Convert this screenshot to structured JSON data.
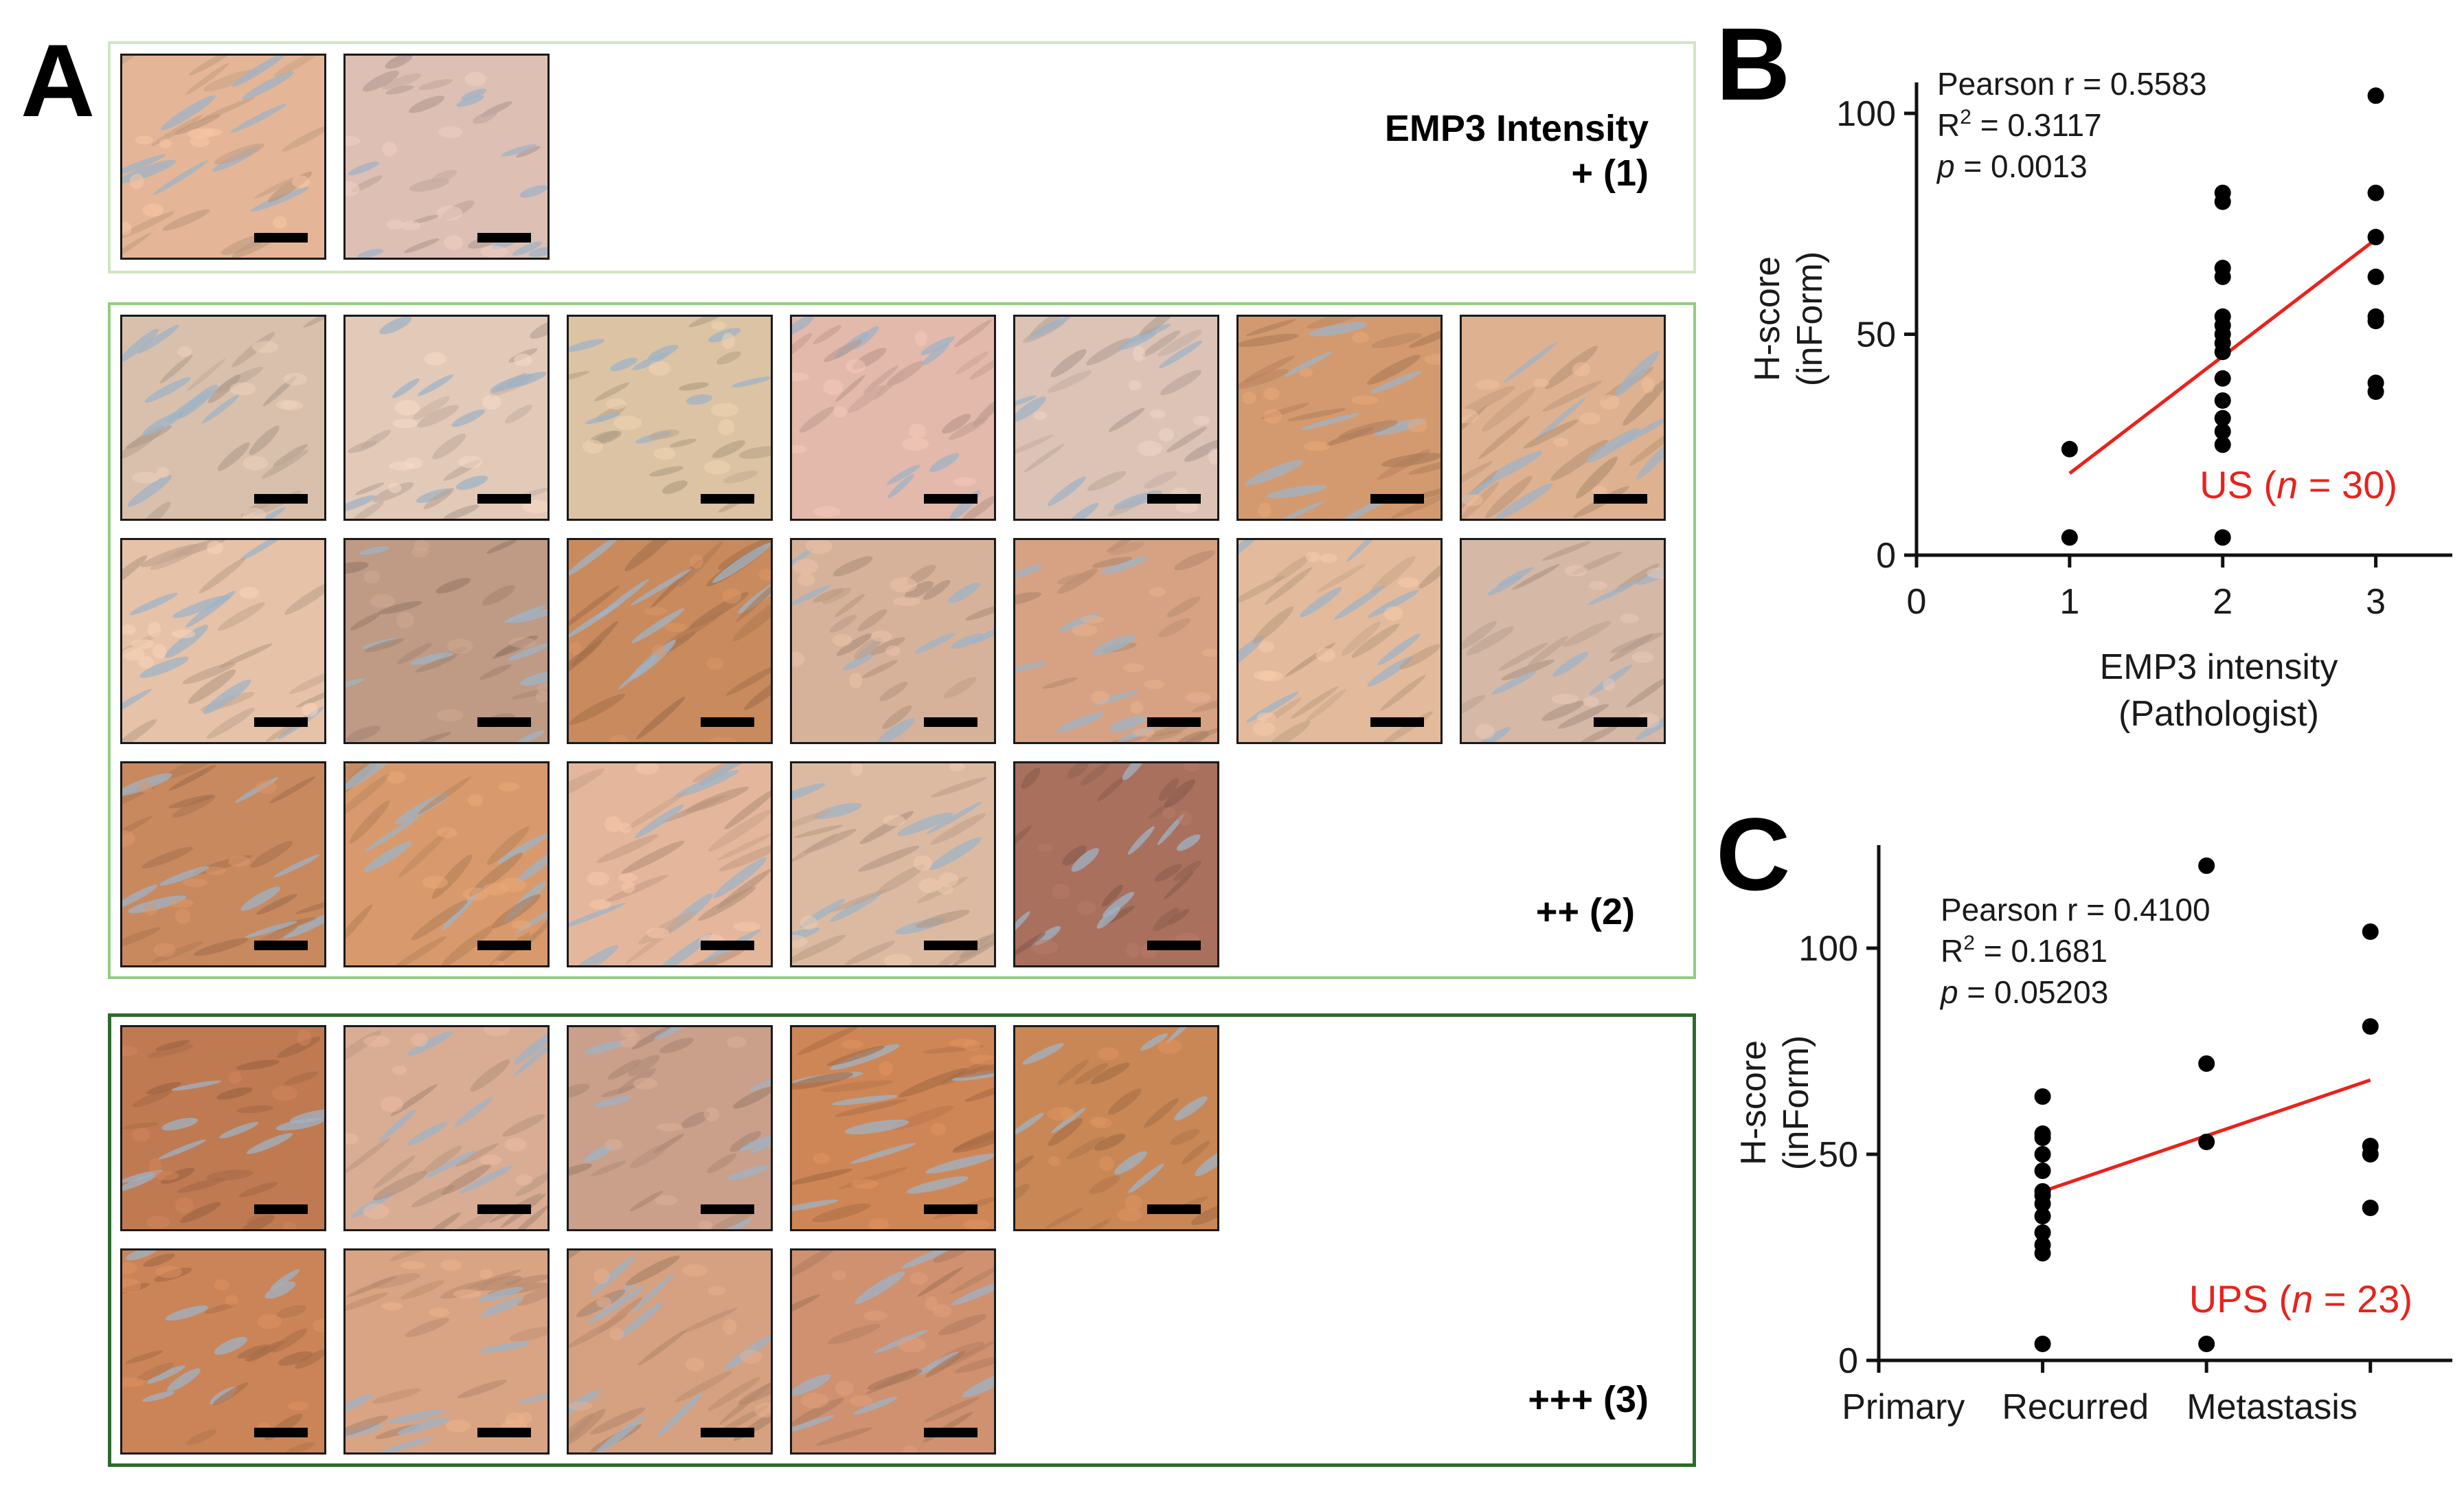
{
  "panel_a": {
    "letter": "A",
    "groups": [
      {
        "id": "intensity-1",
        "label_lines": [
          "EMP3 Intensity",
          "+ (1)"
        ],
        "border_color": "#cfe6c2",
        "tiles": [
          {
            "color": "#e4b697",
            "fiber": 0.7
          },
          {
            "color": "#ddbfb4",
            "fiber": 0.2
          }
        ]
      },
      {
        "id": "intensity-2",
        "label_lines": [
          "++ (2)"
        ],
        "border_color": "#93cc82",
        "tiles": [
          {
            "color": "#d9c0ac",
            "fiber": 0.5
          },
          {
            "color": "#e2c9b8",
            "fiber": 0.3
          },
          {
            "color": "#dcc3a4",
            "fiber": 0.2
          },
          {
            "color": "#e3b9ab",
            "fiber": 0.3
          },
          {
            "color": "#dcc3b6",
            "fiber": 0.4
          },
          {
            "color": "#d49a6f",
            "fiber": 0.7
          },
          {
            "color": "#deb190",
            "fiber": 0.8
          },
          {
            "color": "#e6c2a8",
            "fiber": 0.7
          },
          {
            "color": "#bf9a84",
            "fiber": 0.3
          },
          {
            "color": "#c98a5d",
            "fiber": 0.9
          },
          {
            "color": "#d7b29a",
            "fiber": 0.3
          },
          {
            "color": "#d6a283",
            "fiber": 0.4
          },
          {
            "color": "#e3bb9c",
            "fiber": 0.6
          },
          {
            "color": "#d6b8a6",
            "fiber": 0.5
          },
          {
            "color": "#c8895f",
            "fiber": 0.6
          },
          {
            "color": "#d89a6c",
            "fiber": 0.8
          },
          {
            "color": "#e4b79c",
            "fiber": 0.9
          },
          {
            "color": "#dcbaa1",
            "fiber": 0.7
          },
          {
            "color": "#a9705e",
            "fiber": 0.2
          }
        ]
      },
      {
        "id": "intensity-3",
        "label_lines": [
          "+++ (3)"
        ],
        "border_color": "#2d6b2d",
        "tiles": [
          {
            "color": "#c07a52",
            "fiber": 0.4
          },
          {
            "color": "#d8ad94",
            "fiber": 0.6
          },
          {
            "color": "#caa08a",
            "fiber": 0.3
          },
          {
            "color": "#cf8656",
            "fiber": 0.9
          },
          {
            "color": "#c98756",
            "fiber": 0.3
          },
          {
            "color": "#cb8457",
            "fiber": 0.3
          },
          {
            "color": "#d9a483",
            "fiber": 0.6
          },
          {
            "color": "#d5a180",
            "fiber": 0.8
          },
          {
            "color": "#cf9170",
            "fiber": 0.6
          }
        ]
      }
    ]
  },
  "chart_data": [
    {
      "panel": "B",
      "type": "scatter",
      "title": "",
      "xlabel_lines": [
        "EMP3 intensity",
        "(Pathologist)"
      ],
      "ylabel_lines": [
        "H-score",
        "(inForm)"
      ],
      "xlim": [
        0,
        3.5
      ],
      "ylim": [
        0,
        107
      ],
      "xticks": [
        0,
        1,
        2,
        3
      ],
      "xtick_labels": [
        "0",
        "1",
        "2",
        "3"
      ],
      "yticks": [
        0,
        50,
        100
      ],
      "ytick_labels": [
        "0",
        "50",
        "100"
      ],
      "points": [
        {
          "x": 1,
          "y": 24
        },
        {
          "x": 1,
          "y": 4
        },
        {
          "x": 2,
          "y": 82
        },
        {
          "x": 2,
          "y": 80
        },
        {
          "x": 2,
          "y": 65
        },
        {
          "x": 2,
          "y": 63
        },
        {
          "x": 2,
          "y": 54
        },
        {
          "x": 2,
          "y": 52
        },
        {
          "x": 2,
          "y": 50
        },
        {
          "x": 2,
          "y": 48
        },
        {
          "x": 2,
          "y": 46
        },
        {
          "x": 2,
          "y": 40
        },
        {
          "x": 2,
          "y": 35
        },
        {
          "x": 2,
          "y": 31
        },
        {
          "x": 2,
          "y": 28
        },
        {
          "x": 2,
          "y": 25
        },
        {
          "x": 2,
          "y": 4
        },
        {
          "x": 3,
          "y": 104
        },
        {
          "x": 3,
          "y": 82
        },
        {
          "x": 3,
          "y": 72
        },
        {
          "x": 3,
          "y": 63
        },
        {
          "x": 3,
          "y": 54
        },
        {
          "x": 3,
          "y": 53
        },
        {
          "x": 3,
          "y": 39
        },
        {
          "x": 3,
          "y": 37
        }
      ],
      "fit_line": {
        "x": [
          1,
          3
        ],
        "y": [
          18.5,
          71.5
        ]
      },
      "fit_color": "#e8231c",
      "stats_lines": [
        {
          "main": "Pearson r = 0.5583",
          "sup": "",
          "rest": ""
        },
        {
          "main": "R",
          "sup": "2",
          "rest": " = 0.3117"
        },
        {
          "main": "p",
          "sup": "",
          "rest": " = 0.0013",
          "italic": true
        }
      ],
      "annotation": {
        "prefix": "US (",
        "italic": "n",
        "suffix": " = 30)",
        "color": "#e8231c"
      }
    },
    {
      "panel": "C",
      "type": "scatter",
      "title": "",
      "xlabel_lines": [],
      "ylabel_lines": [
        "H-score",
        "(inForm)"
      ],
      "xlim": [
        0,
        3.5
      ],
      "ylim": [
        0,
        125
      ],
      "xticks": [
        0,
        1,
        2,
        3
      ],
      "xtick_labels": [
        "Primary",
        "Recurred",
        "Metastasis"
      ],
      "xtick_label_positions": [
        0.15,
        1.2,
        2.4
      ],
      "yticks": [
        0,
        50,
        100
      ],
      "ytick_labels": [
        "0",
        "50",
        "100"
      ],
      "points": [
        {
          "x": 1,
          "y": 64
        },
        {
          "x": 1,
          "y": 55
        },
        {
          "x": 1,
          "y": 54
        },
        {
          "x": 1,
          "y": 50
        },
        {
          "x": 1,
          "y": 46
        },
        {
          "x": 1,
          "y": 41
        },
        {
          "x": 1,
          "y": 40
        },
        {
          "x": 1,
          "y": 38
        },
        {
          "x": 1,
          "y": 35
        },
        {
          "x": 1,
          "y": 31
        },
        {
          "x": 1,
          "y": 28
        },
        {
          "x": 1,
          "y": 26
        },
        {
          "x": 1,
          "y": 4
        },
        {
          "x": 2,
          "y": 120
        },
        {
          "x": 2,
          "y": 72
        },
        {
          "x": 2,
          "y": 53
        },
        {
          "x": 2,
          "y": 4
        },
        {
          "x": 3,
          "y": 104
        },
        {
          "x": 3,
          "y": 81
        },
        {
          "x": 3,
          "y": 52
        },
        {
          "x": 3,
          "y": 50
        },
        {
          "x": 3,
          "y": 37
        }
      ],
      "fit_line": {
        "x": [
          1,
          3
        ],
        "y": [
          41,
          68
        ]
      },
      "fit_color": "#e8231c",
      "stats_lines": [
        {
          "main": "Pearson r = 0.4100",
          "sup": "",
          "rest": ""
        },
        {
          "main": "R",
          "sup": "2",
          "rest": " = 0.1681"
        },
        {
          "main": "p",
          "sup": "",
          "rest": " = 0.05203",
          "italic": true
        }
      ],
      "annotation": {
        "prefix": "UPS (",
        "italic": "n",
        "suffix": " = 23)",
        "color": "#e8231c"
      }
    }
  ]
}
